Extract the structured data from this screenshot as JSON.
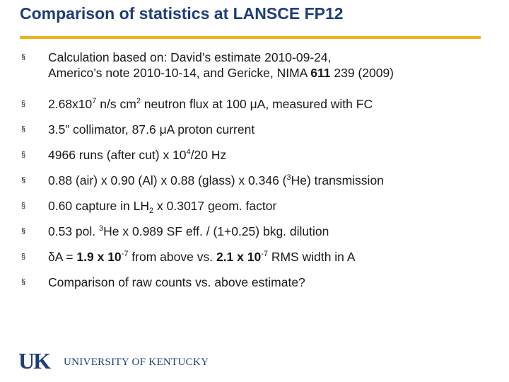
{
  "title": "Comparison of statistics at LANSCE FP12",
  "accent_color": "#e8b420",
  "title_color": "#1f3d7a",
  "bullet_marker": "§",
  "bullets": [
    {
      "line1": "Calculation based on:   David’s estimate 2010-09-24,",
      "line2_a": "Americo’s note 2010-10-14,  and   Gericke, NIMA ",
      "line2_bold": "611",
      "line2_b": " 239 (2009)"
    },
    {
      "a": "2.68x10",
      "sup1": "7",
      "b": " n/s cm",
      "sup2": "2",
      "c": " neutron flux at 100 μA, measured with FC"
    },
    {
      "text": "3.5” collimator, 87.6 μA proton current"
    },
    {
      "a": "4966 runs (after cut) x 10",
      "sup": "4",
      "b": "/20 Hz"
    },
    {
      "a": "0.88 (air) x 0.90 (Al) x 0.88 (glass) x 0.346 (",
      "sup": "3",
      "b": "He) transmission"
    },
    {
      "a": "0.60 capture in LH",
      "sub": "2",
      "b": " x 0.3017 geom. factor"
    },
    {
      "a": "0.53 pol. ",
      "sup": "3",
      "b": "He x 0.989 SF eff. / (1+0.25) bkg. dilution"
    },
    {
      "a": "δA = ",
      "bold1": "1.9 x 10",
      "sup1": "-7",
      "b": "  from above vs.  ",
      "bold2": "2.1 x 10",
      "sup2": "-7",
      "c": "  RMS width in A"
    },
    {
      "text": "Comparison of raw counts vs. above estimate?"
    }
  ],
  "logo": {
    "mark": "UK",
    "text": "UNIVERSITY OF KENTUCKY"
  }
}
